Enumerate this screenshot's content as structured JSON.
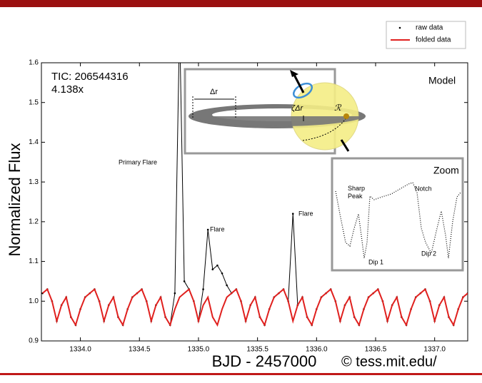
{
  "chart_data": {
    "type": "line",
    "xlabel": "BJD - 2457000",
    "ylabel": "Normalized Flux",
    "credit": "© tess.mit.edu/",
    "xlim": [
      1333.67,
      1337.28
    ],
    "ylim": [
      0.9,
      1.6
    ],
    "xticks": [
      {
        "value": 1334,
        "label": "1334.0"
      },
      1334.5,
      {
        "value": 1335,
        "label": "1335.0"
      },
      1335.5,
      {
        "value": 1336,
        "label": "1336.0"
      },
      1336.5,
      {
        "value": 1337,
        "label": "1337.0"
      }
    ],
    "yticks": [
      0.9,
      {
        "value": 1,
        "label": "1.0"
      },
      1.1,
      1.2,
      1.3,
      1.4,
      1.5,
      1.6
    ],
    "legend": "upper right",
    "grid": false,
    "x": [
      1333.68,
      1333.72,
      1333.76,
      1333.8,
      1333.84,
      1333.88,
      1333.92,
      1333.96,
      1334.0,
      1334.04,
      1334.08,
      1334.12,
      1334.16,
      1334.2,
      1334.24,
      1334.28,
      1334.32,
      1334.36,
      1334.4,
      1334.44,
      1334.48,
      1334.52,
      1334.56,
      1334.6,
      1334.64,
      1334.68,
      1334.72,
      1334.76,
      1334.8,
      1334.84,
      1334.88,
      1334.92,
      1334.96,
      1335.0,
      1335.04,
      1335.08,
      1335.12,
      1335.16,
      1335.2,
      1335.24,
      1335.28,
      1335.32,
      1335.36,
      1335.4,
      1335.44,
      1335.48,
      1335.52,
      1335.56,
      1335.6,
      1335.64,
      1335.68,
      1335.72,
      1335.76,
      1335.8,
      1335.84,
      1335.88,
      1335.92,
      1335.96,
      1336.0,
      1336.04,
      1336.08,
      1336.12,
      1336.16,
      1336.2,
      1336.24,
      1336.28,
      1336.32,
      1336.36,
      1336.4,
      1336.44,
      1336.48,
      1336.52,
      1336.56,
      1336.6,
      1336.64,
      1336.68,
      1336.72,
      1336.76,
      1336.8,
      1336.84,
      1336.88,
      1336.92,
      1336.96,
      1337.0,
      1337.04,
      1337.08,
      1337.12,
      1337.16,
      1337.2,
      1337.24,
      1337.28
    ],
    "series": [
      {
        "name": "raw data",
        "color": "#000000",
        "values": [
          1.02,
          1.03,
          1.0,
          0.95,
          0.99,
          1.01,
          0.96,
          0.94,
          0.98,
          1.01,
          1.02,
          1.03,
          1.0,
          0.95,
          0.99,
          1.01,
          0.96,
          0.94,
          0.98,
          1.01,
          1.02,
          1.03,
          1.0,
          0.95,
          0.99,
          1.01,
          0.96,
          0.94,
          1.02,
          1.7,
          1.05,
          1.03,
          1.0,
          0.95,
          1.03,
          1.18,
          1.08,
          1.09,
          1.07,
          1.04,
          1.02,
          1.03,
          1.0,
          0.95,
          0.99,
          1.01,
          0.96,
          0.94,
          0.98,
          1.01,
          1.02,
          1.03,
          1.0,
          1.22,
          0.99,
          1.01,
          0.96,
          0.94,
          0.98,
          1.01,
          1.02,
          1.03,
          1.0,
          0.95,
          0.99,
          1.01,
          0.96,
          0.94,
          0.98,
          1.01,
          1.02,
          1.03,
          1.0,
          0.95,
          0.99,
          1.01,
          0.96,
          0.94,
          0.98,
          1.01,
          1.02,
          1.03,
          1.0,
          0.95,
          0.99,
          1.01,
          0.96,
          0.94,
          0.98,
          1.01,
          1.02
        ]
      },
      {
        "name": "folded data",
        "color": "#e0201e",
        "values": [
          1.02,
          1.03,
          1.0,
          0.95,
          0.99,
          1.01,
          0.96,
          0.94,
          0.98,
          1.01,
          1.02,
          1.03,
          1.0,
          0.95,
          0.99,
          1.01,
          0.96,
          0.94,
          0.98,
          1.01,
          1.02,
          1.03,
          1.0,
          0.95,
          0.99,
          1.01,
          0.96,
          0.94,
          0.98,
          1.01,
          1.02,
          1.03,
          1.0,
          0.95,
          0.99,
          1.01,
          0.96,
          0.94,
          0.98,
          1.01,
          1.02,
          1.03,
          1.0,
          0.95,
          0.99,
          1.01,
          0.96,
          0.94,
          0.98,
          1.01,
          1.02,
          1.03,
          1.0,
          0.95,
          0.99,
          1.01,
          0.96,
          0.94,
          0.98,
          1.01,
          1.02,
          1.03,
          1.0,
          0.95,
          0.99,
          1.01,
          0.96,
          0.94,
          0.98,
          1.01,
          1.02,
          1.03,
          1.0,
          0.95,
          0.99,
          1.01,
          0.96,
          0.94,
          0.98,
          1.01,
          1.02,
          1.03,
          1.0,
          0.95,
          0.99,
          1.01,
          0.96,
          0.94,
          0.98,
          1.01,
          1.02
        ]
      }
    ],
    "annotations": {
      "tic": "TIC: 206544316",
      "speed": "4.138x",
      "primary_flare": "Primary Flare",
      "flare_1": "Flare",
      "flare_2": "Flare"
    },
    "model_inset": {
      "title": "Model",
      "delta_r": "Δr",
      "zeta_delta_r": "ζΔr",
      "radius": "ℛ"
    },
    "zoom_inset": {
      "title": "Zoom",
      "sharp_peak": "Sharp Peak",
      "notch": "Notch",
      "dip_1": "Dip 1",
      "dip_2": "Dip 2"
    }
  }
}
